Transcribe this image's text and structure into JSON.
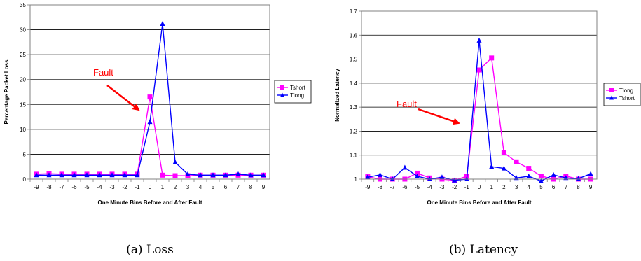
{
  "chart_data": [
    {
      "type": "line",
      "ylabel": "Percentage Packet Loss",
      "xlabel": "One Minute Bins Before and After Fault",
      "categories": [
        "-9",
        "-8",
        "-7",
        "-6",
        "-5",
        "-4",
        "-3",
        "-2",
        "-1",
        "0",
        "1",
        "2",
        "3",
        "4",
        "5",
        "6",
        "7",
        "8",
        "9"
      ],
      "ylim": [
        0,
        35
      ],
      "yticks": [
        "0",
        "5",
        "10",
        "15",
        "20",
        "25",
        "30",
        "35"
      ],
      "grid": true,
      "legend_position": "right",
      "series": [
        {
          "name": "Tshort",
          "color": "#ff00ff",
          "marker": "square",
          "values": [
            1.0,
            1.1,
            1.0,
            1.0,
            1.0,
            1.0,
            1.0,
            1.0,
            1.0,
            16.5,
            0.8,
            0.7,
            0.7,
            0.8,
            0.8,
            0.8,
            0.8,
            0.8,
            0.8
          ]
        },
        {
          "name": "Tlong",
          "color": "#0000ff",
          "marker": "triangle",
          "values": [
            0.8,
            0.8,
            0.8,
            0.8,
            0.8,
            0.8,
            0.8,
            0.8,
            0.8,
            11.5,
            31.2,
            3.4,
            1.0,
            0.8,
            0.8,
            0.8,
            1.0,
            0.8,
            0.8
          ]
        }
      ],
      "annotation": {
        "text": "Fault",
        "color": "#ff0000"
      },
      "caption": "(a) Loss"
    },
    {
      "type": "line",
      "ylabel": "Normalized Latency",
      "xlabel": "One Minute Bins Before and After Fault",
      "categories": [
        "-9",
        "-8",
        "-7",
        "-6",
        "-5",
        "-4",
        "-3",
        "-2",
        "-1",
        "0",
        "1",
        "2",
        "3",
        "4",
        "5",
        "6",
        "7",
        "8",
        "9"
      ],
      "ylim": [
        1,
        1.7
      ],
      "yticks": [
        "1",
        "1.1",
        "1.2",
        "1.3",
        "1.4",
        "1.5",
        "1.6",
        "1.7"
      ],
      "grid": true,
      "legend_position": "right",
      "series": [
        {
          "name": "Tlong",
          "color": "#ff00ff",
          "marker": "square",
          "values": [
            1.01,
            1.0,
            1.0,
            1.0,
            1.025,
            1.005,
            1.0,
            0.995,
            1.012,
            1.455,
            1.505,
            1.11,
            1.072,
            1.045,
            1.013,
            1.0,
            1.013,
            1.0,
            1.0
          ]
        },
        {
          "name": "Tshort",
          "color": "#0000ff",
          "marker": "triangle",
          "values": [
            1.008,
            1.018,
            1.0,
            1.048,
            1.012,
            1.0,
            1.008,
            0.995,
            1.0,
            1.578,
            1.052,
            1.045,
            1.005,
            1.012,
            0.992,
            1.018,
            1.005,
            1.002,
            1.022
          ]
        }
      ],
      "annotation": {
        "text": "Fault",
        "color": "#ff0000"
      },
      "caption": "(b) Latency"
    }
  ]
}
